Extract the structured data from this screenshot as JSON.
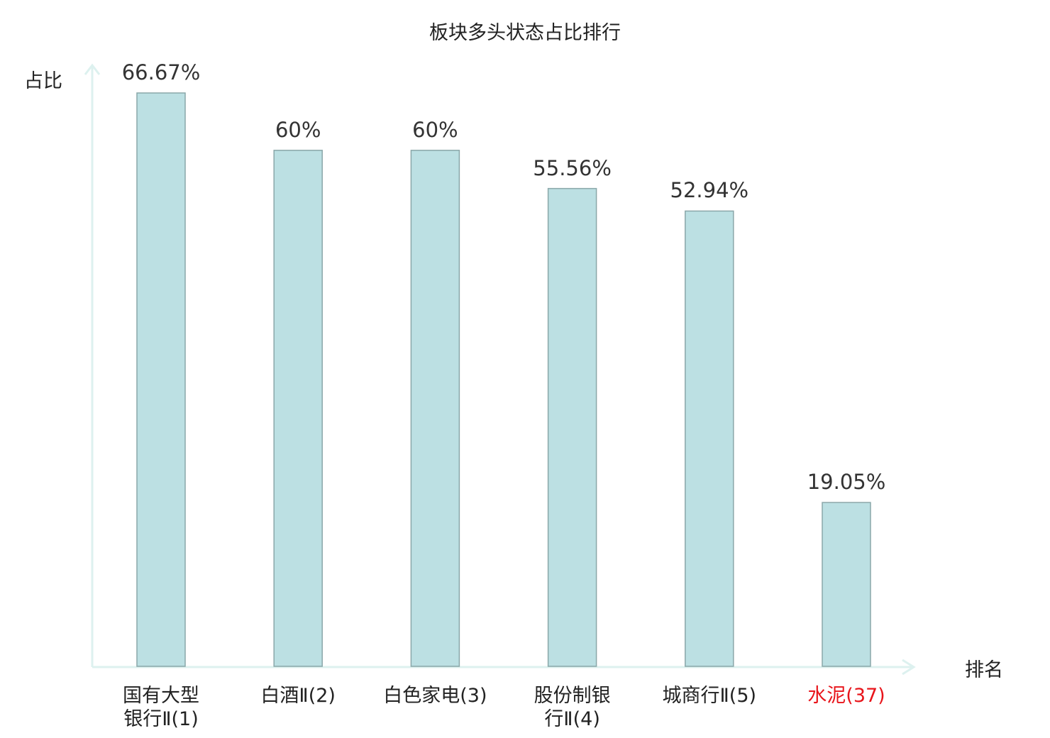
{
  "chart_data": {
    "type": "bar",
    "title": "板块多头状态占比排行",
    "ylabel": "占比",
    "xlabel": "排名",
    "categories": [
      "国有大型\n银行Ⅱ(1)",
      "白酒Ⅱ(2)",
      "白色家电(3)",
      "股份制银\n行Ⅱ(4)",
      "城商行Ⅱ(5)",
      "水泥(37)"
    ],
    "values": [
      66.67,
      60,
      60,
      55.56,
      52.94,
      19.05
    ],
    "data_labels": [
      "66.67%",
      "60%",
      "60%",
      "55.56%",
      "52.94%",
      "19.05%"
    ],
    "highlight_category_index": 5,
    "grid": false,
    "ylim": [
      0,
      66.67
    ],
    "colors": {
      "bar_fill": "#bce0e3",
      "bar_stroke": "#8aa7a9",
      "axis": "#ddf1ef",
      "highlight_label": "#e8141a",
      "text": "#222222"
    }
  }
}
